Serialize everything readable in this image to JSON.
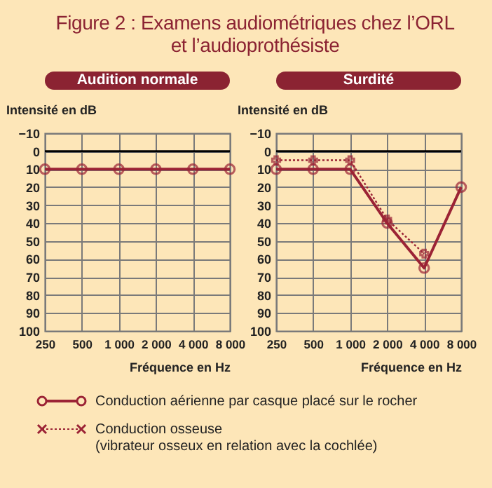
{
  "chart_data": [
    {
      "type": "line",
      "title": "Figure 2 : Examens audiométriques chez l’ORL\net l’audioprothésiste",
      "subtitle": "Audition normale",
      "xlabel": "Fréquence en Hz",
      "ylabel": "Intensité en dB",
      "categories": [
        "250",
        "500",
        "1 000",
        "2 000",
        "4 000",
        "8 000"
      ],
      "series": [
        {
          "color": "#9b2335",
          "marker": "circle",
          "line_style": "solid",
          "values": [
            10,
            10,
            10,
            10,
            10,
            10
          ]
        }
      ],
      "ylim": [
        100,
        -10
      ],
      "yticks": [
        -10,
        0,
        10,
        20,
        30,
        40,
        50,
        60,
        70,
        80,
        90,
        100
      ],
      "grid": true,
      "ref_lines": [
        {
          "axis": "y",
          "value": 0,
          "color": "#000000"
        }
      ]
    },
    {
      "type": "line",
      "subtitle": "Surdité",
      "xlabel": "Fréquence en Hz",
      "ylabel": "Intensité en dB",
      "categories": [
        "250",
        "500",
        "1 000",
        "2 000",
        "4 000",
        "8 000"
      ],
      "series": [
        {
          "name": "Conduction aérienne par casque placé sur le rocher",
          "color": "#9b2335",
          "marker": "circle",
          "line_style": "solid",
          "values": [
            10,
            10,
            10,
            40,
            65,
            20
          ]
        },
        {
          "name": "Conduction osseuse\n(vibrateur osseux en relation avec la cochlée)",
          "color": "#9b2335",
          "marker": "cross",
          "line_style": "dotted",
          "values": [
            5,
            5,
            5,
            38,
            57,
            null
          ]
        }
      ],
      "ylim": [
        100,
        -10
      ],
      "yticks": [
        -10,
        0,
        10,
        20,
        30,
        40,
        50,
        60,
        70,
        80,
        90,
        100
      ],
      "grid": true,
      "legend": "bottom",
      "ref_lines": [
        {
          "axis": "y",
          "value": 0,
          "color": "#000000"
        }
      ]
    }
  ]
}
